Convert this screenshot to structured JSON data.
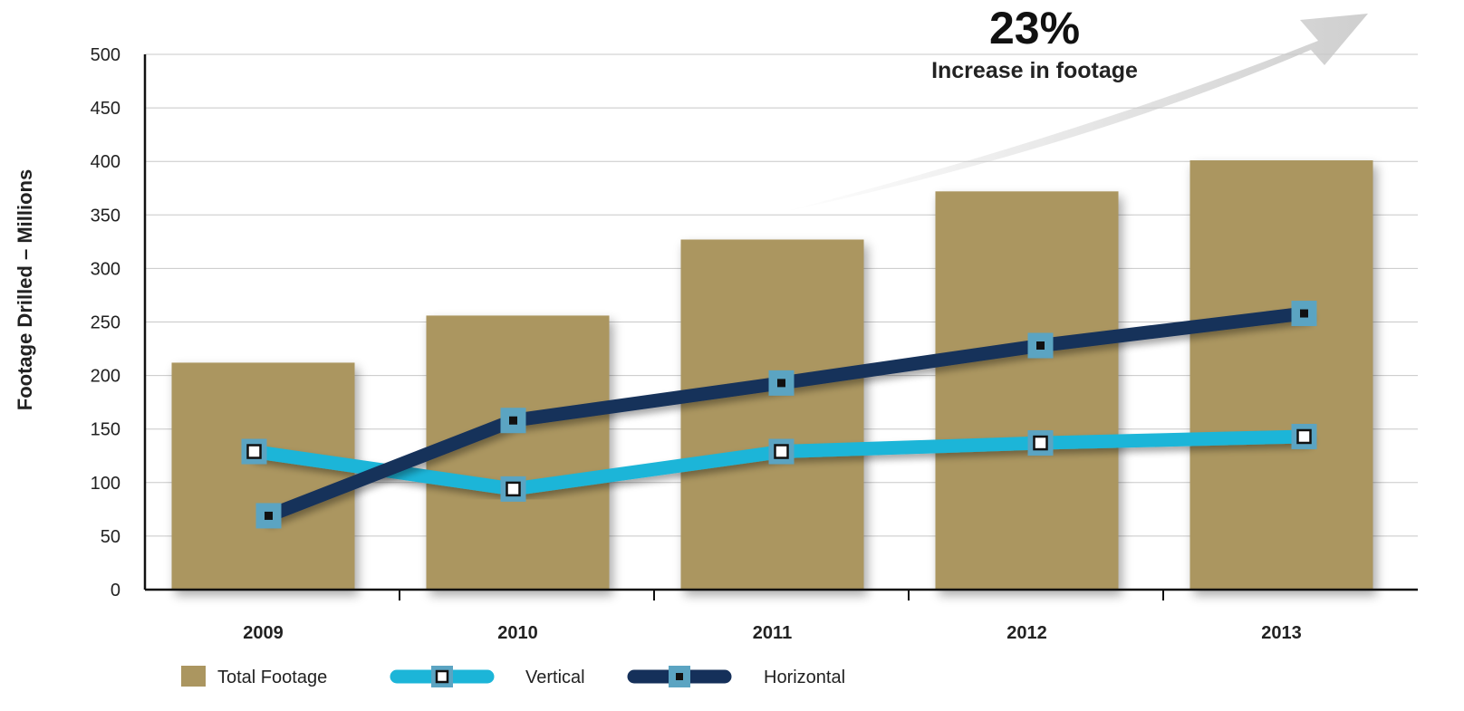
{
  "chart_data": {
    "type": "bar",
    "categories": [
      "2009",
      "2010",
      "2011",
      "2012",
      "2013"
    ],
    "series": [
      {
        "name": "Total Footage",
        "type": "bar",
        "color": "#ab9660",
        "values": [
          212,
          256,
          327,
          372,
          401
        ]
      },
      {
        "name": "Vertical",
        "type": "line",
        "color": "#1cb5d8",
        "values": [
          129,
          94,
          129,
          137,
          143
        ]
      },
      {
        "name": "Horizontal",
        "type": "line",
        "color": "#15305a",
        "values": [
          69,
          158,
          193,
          228,
          258
        ]
      }
    ],
    "xlabel": "",
    "ylabel": "Footage Drilled – Millions",
    "ylim": [
      0,
      500
    ],
    "yticks": [
      0,
      50,
      100,
      150,
      200,
      250,
      300,
      350,
      400,
      450,
      500
    ],
    "grid": true,
    "legend_position": "bottom-left",
    "annotation": {
      "value": "23%",
      "text": "Increase in footage"
    },
    "marker_color": "#5ba4c2",
    "arrow_color": "#d9d9d9"
  }
}
